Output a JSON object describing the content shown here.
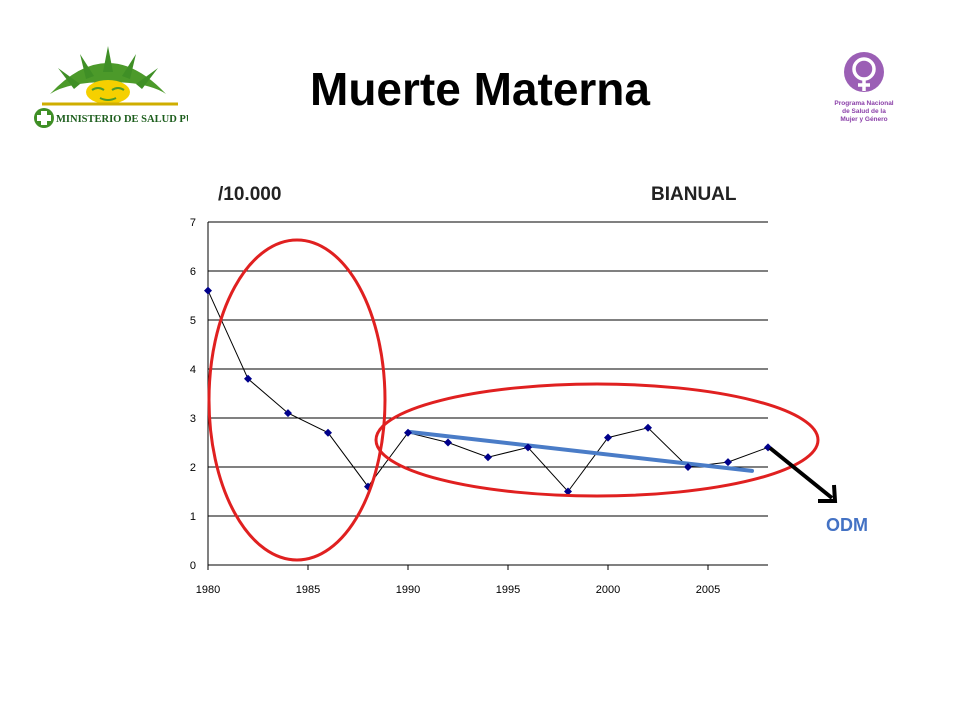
{
  "title": "Muerte Materna",
  "logo_left": {
    "text": "MINISTERIO DE SALUD PÚBLICA",
    "icon": "uruguay-sun-logo"
  },
  "logo_right": {
    "lines": [
      "Programa Nacional",
      "de Salud de la",
      "Mujer y Género"
    ],
    "icon": "female-symbol-logo"
  },
  "label_left": "/10.000",
  "label_right": "BIANUAL",
  "odm_label": "ODM",
  "colors": {
    "series": "#00008b",
    "trend": "#4a7cc7",
    "ellipse": "#e02020",
    "arrow": "#000000",
    "odm": "#4472c4"
  },
  "chart_data": {
    "type": "line",
    "x_ticks": [
      1980,
      1985,
      1990,
      1995,
      2000,
      2005
    ],
    "y_ticks": [
      0,
      1,
      2,
      3,
      4,
      5,
      6,
      7
    ],
    "xlim": [
      1980,
      2008
    ],
    "ylim": [
      0,
      7
    ],
    "grid": "horizontal",
    "series": [
      {
        "x": [
          1980,
          1982,
          1984,
          1986,
          1988,
          1990,
          1992,
          1994,
          1996,
          1998,
          2000,
          2002,
          2004,
          2006,
          2008
        ],
        "values": [
          5.6,
          3.8,
          3.1,
          2.7,
          1.6,
          2.7,
          2.5,
          2.2,
          2.4,
          1.5,
          2.6,
          2.8,
          2.0,
          2.1,
          2.4
        ]
      }
    ],
    "trendline": {
      "x": [
        1990,
        2007.2
      ],
      "values": [
        2.72,
        1.92
      ]
    }
  }
}
